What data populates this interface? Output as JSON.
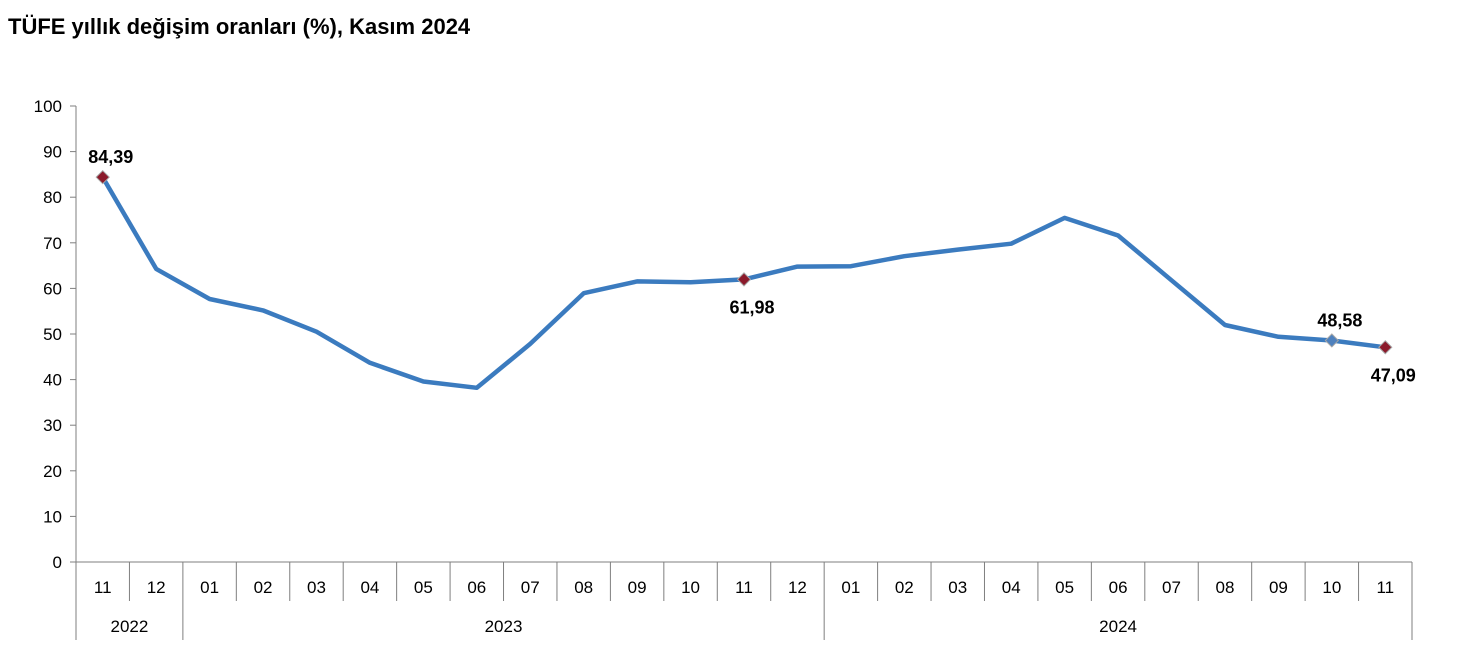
{
  "title": "TÜFE yıllık değişim oranları (%), Kasım 2024",
  "chart_data": {
    "type": "line",
    "title": "TÜFE yıllık değişim oranları (%), Kasım 2024",
    "xlabel": "",
    "ylabel": "",
    "ylim": [
      0,
      100
    ],
    "yticks": [
      "0",
      "10",
      "20",
      "30",
      "40",
      "50",
      "60",
      "70",
      "80",
      "90",
      "100"
    ],
    "grid": false,
    "line_color": "#3b7bbf",
    "marker_highlight_color": "#8b1a2b",
    "marker_default_color": "#4f81bd",
    "categories": [
      "11",
      "12",
      "01",
      "02",
      "03",
      "04",
      "05",
      "06",
      "07",
      "08",
      "09",
      "10",
      "11",
      "12",
      "01",
      "02",
      "03",
      "04",
      "05",
      "06",
      "07",
      "08",
      "09",
      "10",
      "11"
    ],
    "year_groups": [
      {
        "label": "2022",
        "start": 0,
        "end": 1
      },
      {
        "label": "2023",
        "start": 2,
        "end": 13
      },
      {
        "label": "2024",
        "start": 14,
        "end": 24
      }
    ],
    "series": [
      {
        "values": [
          84.39,
          64.27,
          57.68,
          55.18,
          50.51,
          43.68,
          39.59,
          38.21,
          47.83,
          58.94,
          61.53,
          61.36,
          61.98,
          64.77,
          64.86,
          67.07,
          68.5,
          69.8,
          75.45,
          71.6,
          61.78,
          51.97,
          49.38,
          48.58,
          47.09
        ]
      }
    ],
    "annotations": [
      {
        "index": 0,
        "label": "84,39",
        "marker": "highlight",
        "placement": "above"
      },
      {
        "index": 12,
        "label": "61,98",
        "marker": "highlight",
        "placement": "below"
      },
      {
        "index": 23,
        "label": "48,58",
        "marker": "default",
        "placement": "above"
      },
      {
        "index": 24,
        "label": "47,09",
        "marker": "highlight",
        "placement": "below"
      }
    ]
  }
}
